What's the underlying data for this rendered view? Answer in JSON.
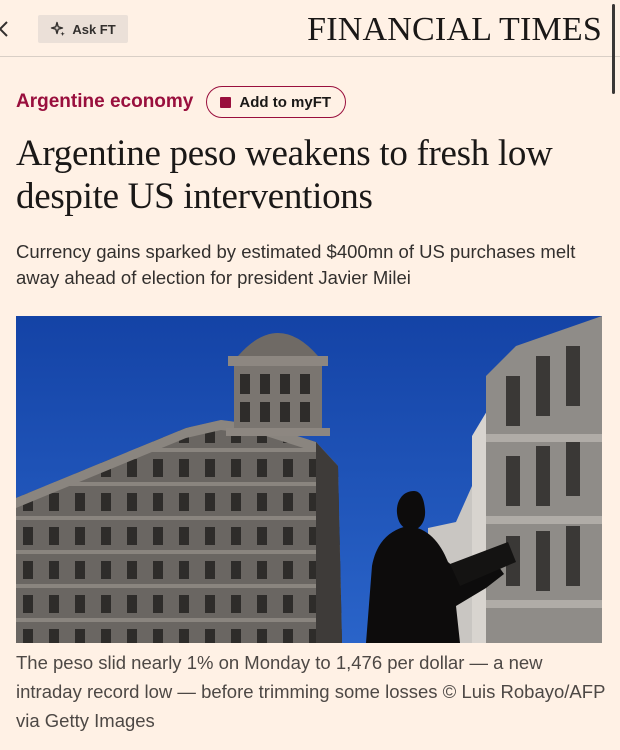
{
  "header": {
    "ask_ft_label": "Ask FT",
    "masthead": "FINANCIAL TIMES"
  },
  "article": {
    "section": "Argentine economy",
    "myft_button_label": "Add to myFT",
    "headline": "Argentine peso weakens to fresh low despite US interventions",
    "standfirst": "Currency gains sparked by estimated $400mn of US purchases melt away ahead of election for president Javier Milei",
    "image_caption": "The peso slid nearly 1% on Monday to 1,476 per dollar — a new intraday record low — before trimming some losses © Luis Robayo/AFP via Getty Images"
  },
  "icons": {
    "back": "chevron-left-icon",
    "ask_ft": "sparkle-icon",
    "myft": "square-icon"
  },
  "colors": {
    "background": "#fff1e5",
    "accent": "#990f3d",
    "ask_ft_button": "#ebe0d8",
    "text": "#33302e",
    "sky": "#1a4fb5"
  }
}
